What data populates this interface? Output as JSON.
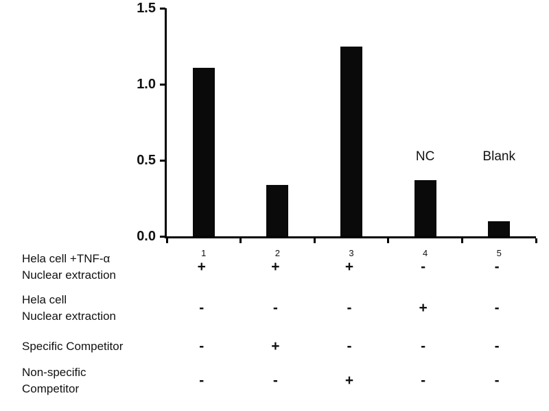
{
  "chart_data": {
    "type": "bar",
    "categories": [
      "1",
      "2",
      "3",
      "4",
      "5"
    ],
    "values": [
      1.11,
      0.34,
      1.25,
      0.37,
      0.1
    ],
    "title": "",
    "xlabel": "",
    "ylabel": "",
    "ylim": [
      0,
      1.5
    ],
    "yticks": [
      "0.0",
      "0.5",
      "1.0",
      "1.5"
    ],
    "grid": false,
    "legend": false,
    "bar_color": "#0a0a0a",
    "annotations": [
      {
        "text": "NC",
        "above_category": "4"
      },
      {
        "text": "Blank",
        "above_category": "5"
      }
    ]
  },
  "condition_table": {
    "rows": [
      {
        "label_lines": [
          "Hela cell +TNF-α",
          "Nuclear extraction"
        ],
        "signs": [
          "+",
          "+",
          "+",
          "-",
          "-"
        ]
      },
      {
        "label_lines": [
          "Hela cell",
          "Nuclear extraction"
        ],
        "signs": [
          "-",
          "-",
          "-",
          "+",
          "-"
        ]
      },
      {
        "label_lines": [
          "Specific Competitor"
        ],
        "signs": [
          "-",
          "+",
          "-",
          "-",
          "-"
        ]
      },
      {
        "label_lines": [
          "Non-specific",
          "Competitor"
        ],
        "signs": [
          "-",
          "-",
          "+",
          "-",
          "-"
        ]
      }
    ]
  }
}
